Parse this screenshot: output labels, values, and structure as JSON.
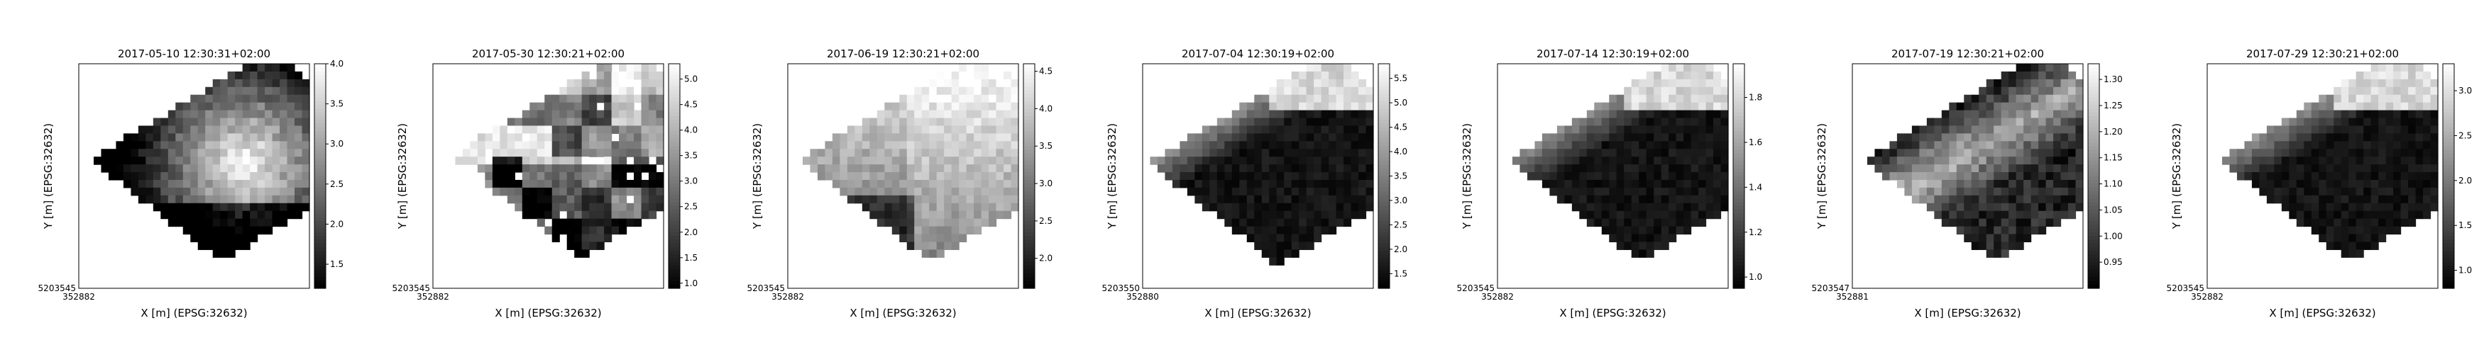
{
  "chart_data": [
    {
      "type": "heatmap",
      "title": "2017-05-10 12:30:31+02:00",
      "xlabel": "X [m] (EPSG:32632)",
      "ylabel": "Y [m] (EPSG:32632)",
      "x_tick_label": "352882",
      "y_tick_label": "5203545",
      "colorbar": {
        "range": [
          1.2,
          4.0
        ],
        "ticks": [
          "1.5",
          "2.0",
          "2.5",
          "3.0",
          "3.5",
          "4.0"
        ],
        "tick_values": [
          1.5,
          2.0,
          2.5,
          3.0,
          3.5,
          4.0
        ]
      },
      "pattern": "bright-center"
    },
    {
      "type": "heatmap",
      "title": "2017-05-30 12:30:21+02:00",
      "xlabel": "X [m] (EPSG:32632)",
      "ylabel": "Y [m] (EPSG:32632)",
      "x_tick_label": "352882",
      "y_tick_label": "5203545",
      "colorbar": {
        "range": [
          0.9,
          5.3
        ],
        "ticks": [
          "1.0",
          "1.5",
          "2.0",
          "2.5",
          "3.0",
          "3.5",
          "4.0",
          "4.5",
          "5.0"
        ],
        "tick_values": [
          1.0,
          1.5,
          2.0,
          2.5,
          3.0,
          3.5,
          4.0,
          4.5,
          5.0
        ]
      },
      "pattern": "patchy"
    },
    {
      "type": "heatmap",
      "title": "2017-06-19 12:30:21+02:00",
      "xlabel": "X [m] (EPSG:32632)",
      "ylabel": "Y [m] (EPSG:32632)",
      "x_tick_label": "352882",
      "y_tick_label": "5203545",
      "colorbar": {
        "range": [
          1.6,
          4.6
        ],
        "ticks": [
          "2.0",
          "2.5",
          "3.0",
          "3.5",
          "4.0",
          "4.5"
        ],
        "tick_values": [
          2.0,
          2.5,
          3.0,
          3.5,
          4.0,
          4.5
        ]
      },
      "pattern": "bright-top"
    },
    {
      "type": "heatmap",
      "title": "2017-07-04 12:30:19+02:00",
      "xlabel": "X [m] (EPSG:32632)",
      "ylabel": "Y [m] (EPSG:32632)",
      "x_tick_label": "352880",
      "y_tick_label": "5203550",
      "colorbar": {
        "range": [
          1.2,
          5.8
        ],
        "ticks": [
          "1.5",
          "2.0",
          "2.5",
          "3.0",
          "3.5",
          "4.0",
          "4.5",
          "5.0",
          "5.5"
        ],
        "tick_values": [
          1.5,
          2.0,
          2.5,
          3.0,
          3.5,
          4.0,
          4.5,
          5.0,
          5.5
        ]
      },
      "pattern": "bright-corner"
    },
    {
      "type": "heatmap",
      "title": "2017-07-14 12:30:19+02:00",
      "xlabel": "X [m] (EPSG:32632)",
      "ylabel": "Y [m] (EPSG:32632)",
      "x_tick_label": "352882",
      "y_tick_label": "5203545",
      "colorbar": {
        "range": [
          0.95,
          1.95
        ],
        "ticks": [
          "1.0",
          "1.2",
          "1.4",
          "1.6",
          "1.8"
        ],
        "tick_values": [
          1.0,
          1.2,
          1.4,
          1.6,
          1.8
        ]
      },
      "pattern": "bright-corner"
    },
    {
      "type": "heatmap",
      "title": "2017-07-19 12:30:21+02:00",
      "xlabel": "X [m] (EPSG:32632)",
      "ylabel": "Y [m] (EPSG:32632)",
      "x_tick_label": "352881",
      "y_tick_label": "5203547",
      "colorbar": {
        "range": [
          0.9,
          1.33
        ],
        "ticks": [
          "0.95",
          "1.00",
          "1.05",
          "1.10",
          "1.15",
          "1.20",
          "1.25",
          "1.30"
        ],
        "tick_values": [
          0.95,
          1.0,
          1.05,
          1.1,
          1.15,
          1.2,
          1.25,
          1.3
        ]
      },
      "pattern": "bright-band"
    },
    {
      "type": "heatmap",
      "title": "2017-07-29 12:30:21+02:00",
      "xlabel": "X [m] (EPSG:32632)",
      "ylabel": "Y [m] (EPSG:32632)",
      "x_tick_label": "352882",
      "y_tick_label": "5203545",
      "colorbar": {
        "range": [
          0.8,
          3.3
        ],
        "ticks": [
          "1.0",
          "1.5",
          "2.0",
          "2.5",
          "3.0"
        ],
        "tick_values": [
          1.0,
          1.5,
          2.0,
          2.5,
          3.0
        ]
      },
      "pattern": "bright-corner"
    }
  ]
}
